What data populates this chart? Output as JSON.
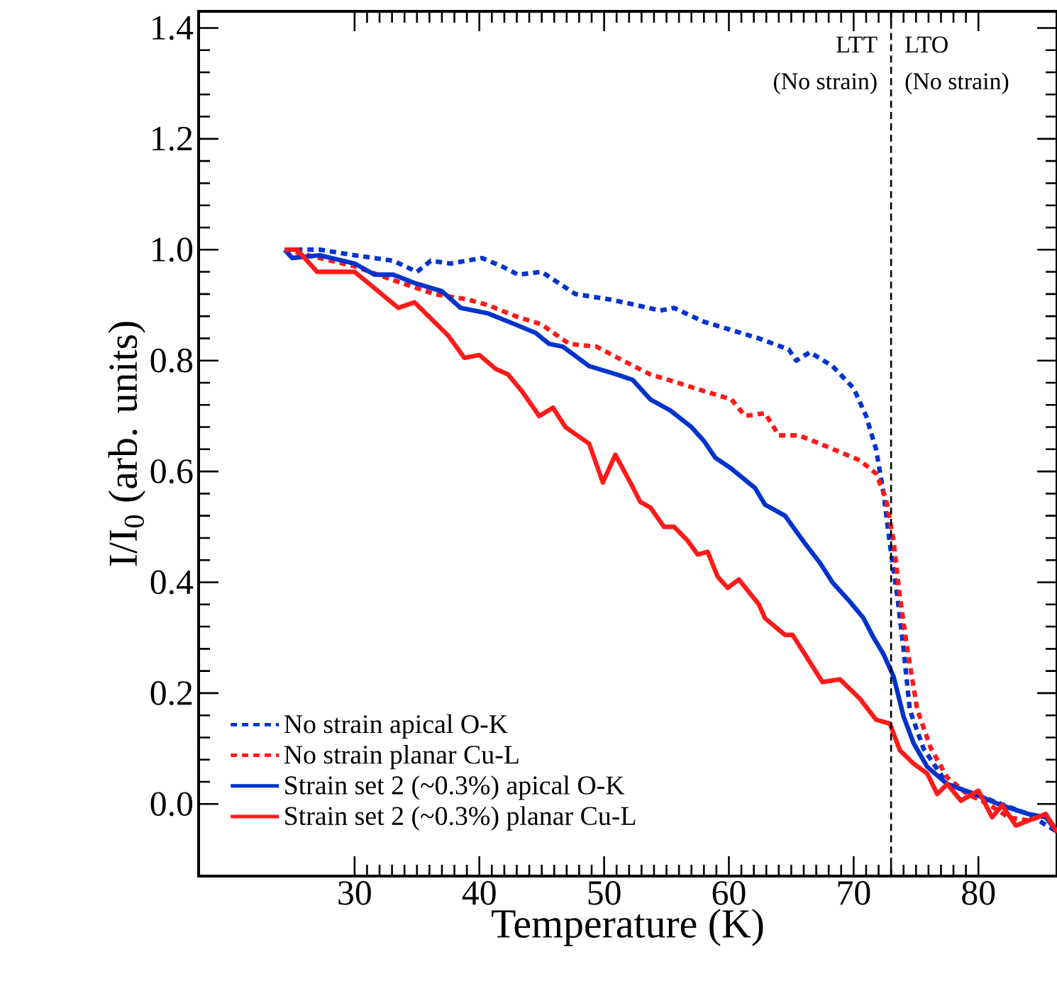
{
  "chart_data": {
    "type": "line",
    "xlabel": "Temperature (K)",
    "ylabel": "I/I$_{0}$   (arb. units)",
    "xlim": [
      17.5,
      86.3
    ],
    "ylim": [
      -0.13,
      1.43
    ],
    "xticks": [
      30,
      40,
      50,
      60,
      70,
      80
    ],
    "yticks": [
      {
        "value": 0,
        "label": "0.0"
      },
      {
        "value": 0.2,
        "label": "0.2"
      },
      {
        "value": 0.4,
        "label": "0.4"
      },
      {
        "value": 0.6,
        "label": "0.6"
      },
      {
        "value": 0.8,
        "label": "0.8"
      },
      {
        "value": 1.0,
        "label": "1.0"
      },
      {
        "value": 1.2,
        "label": "1.2"
      },
      {
        "value": 1.4,
        "label": "1.4"
      }
    ],
    "legend": "bottom left",
    "grid": false,
    "marker": "none",
    "ref_lines": [
      {
        "axis": "x",
        "value": 73,
        "color": "#000000",
        "line_style": "dashed"
      }
    ],
    "annotations": [
      "LTT",
      "(No strain)",
      "LTO",
      "(No strain)"
    ],
    "series": [
      {
        "name": "No strain apical O-K",
        "color": "#0033cc",
        "line_style": "dotted",
        "x": [
          24.4,
          27.2,
          30,
          33.1,
          35,
          36.1,
          37.7,
          40.2,
          41.8,
          43.1,
          45,
          47.7,
          50.5,
          52.6,
          54.5,
          55.6,
          58,
          60.2,
          62.4,
          64.8,
          65.4,
          66.5,
          68.3,
          70,
          71,
          71.8,
          72.4,
          72.9,
          73.5,
          74,
          74.5,
          75.6,
          77.5,
          79.7,
          81.8,
          84,
          86.3
        ],
        "values": [
          1.0,
          1.0,
          0.99,
          0.98,
          0.96,
          0.98,
          0.975,
          0.985,
          0.97,
          0.955,
          0.96,
          0.92,
          0.91,
          0.9,
          0.89,
          0.895,
          0.87,
          0.855,
          0.84,
          0.82,
          0.8,
          0.815,
          0.79,
          0.75,
          0.7,
          0.64,
          0.56,
          0.47,
          0.375,
          0.28,
          0.17,
          0.1,
          0.036,
          0.018,
          0,
          -0.018,
          -0.05
        ]
      },
      {
        "name": "No strain planar Cu-L",
        "color": "#ff1a1a",
        "line_style": "dotted",
        "x": [
          24.4,
          27.2,
          30,
          33.1,
          36.4,
          39.1,
          40.7,
          42.9,
          45,
          47.2,
          49.4,
          51.5,
          53.7,
          55.9,
          58,
          60.2,
          61.3,
          62.9,
          64,
          65.6,
          67.3,
          68.9,
          70.5,
          71.8,
          72.6,
          73.2,
          73.7,
          74.3,
          75.1,
          76.2,
          77.5,
          79.1,
          80.8,
          82.4,
          84.1,
          85.4,
          86.3
        ],
        "values": [
          1.0,
          0.985,
          0.97,
          0.945,
          0.92,
          0.91,
          0.9,
          0.88,
          0.865,
          0.83,
          0.825,
          0.8,
          0.775,
          0.76,
          0.745,
          0.73,
          0.7,
          0.705,
          0.665,
          0.665,
          0.65,
          0.635,
          0.62,
          0.596,
          0.55,
          0.475,
          0.375,
          0.28,
          0.17,
          0.1,
          0.048,
          0.018,
          0,
          -0.024,
          -0.03,
          -0.018,
          -0.05
        ]
      },
      {
        "name": "Strain set 2 (~0.3%) apical O-K",
        "color": "#0033cc",
        "line_style": "solid",
        "x": [
          24.4,
          25,
          27.2,
          30,
          31.6,
          33.1,
          34.8,
          37,
          38.5,
          40.7,
          42.9,
          44.5,
          45.6,
          46.7,
          48.8,
          51,
          52.3,
          53.7,
          55.3,
          57,
          58,
          58.9,
          60.2,
          62.1,
          62.9,
          64.5,
          66.1,
          67.3,
          68.3,
          69.7,
          70.8,
          71.6,
          72.4,
          73.2,
          74,
          74.8,
          75.9,
          77.5,
          79.7,
          81.8,
          84,
          85.4,
          86.3
        ],
        "values": [
          1.0,
          0.985,
          0.99,
          0.975,
          0.955,
          0.955,
          0.94,
          0.925,
          0.895,
          0.885,
          0.865,
          0.85,
          0.83,
          0.825,
          0.79,
          0.775,
          0.765,
          0.73,
          0.71,
          0.68,
          0.655,
          0.625,
          0.605,
          0.57,
          0.54,
          0.52,
          0.47,
          0.435,
          0.4,
          0.365,
          0.335,
          0.3,
          0.27,
          0.23,
          0.158,
          0.11,
          0.067,
          0.036,
          0.018,
          -0.002,
          -0.018,
          -0.024,
          -0.05
        ]
      },
      {
        "name": "Strain set 2 (~0.3%) planar Cu-L",
        "color": "#ff1a1a",
        "line_style": "solid",
        "x": [
          24.4,
          25.4,
          27,
          30,
          31.9,
          33.5,
          34.8,
          37.5,
          38.8,
          40,
          41.3,
          42.3,
          43.4,
          44.8,
          45.9,
          46.9,
          48.8,
          49.9,
          50.9,
          52.1,
          52.9,
          53.7,
          54.8,
          55.6,
          56.7,
          57.5,
          58.3,
          59.1,
          59.9,
          60.8,
          62.4,
          62.9,
          64.5,
          65.1,
          66.1,
          67.5,
          68.9,
          70.5,
          71.8,
          72.9,
          73.7,
          74.8,
          75.9,
          76.7,
          77.5,
          78.6,
          80,
          81.1,
          81.9,
          83,
          84,
          85.4,
          86.3
        ],
        "values": [
          1.0,
          1.0,
          0.96,
          0.96,
          0.925,
          0.895,
          0.905,
          0.845,
          0.805,
          0.81,
          0.785,
          0.775,
          0.745,
          0.7,
          0.715,
          0.68,
          0.65,
          0.58,
          0.63,
          0.58,
          0.545,
          0.535,
          0.5,
          0.5,
          0.475,
          0.45,
          0.455,
          0.41,
          0.39,
          0.405,
          0.36,
          0.335,
          0.305,
          0.305,
          0.27,
          0.22,
          0.225,
          0.19,
          0.152,
          0.145,
          0.097,
          0.073,
          0.055,
          0.018,
          0.036,
          0.006,
          0.024,
          -0.024,
          -0.002,
          -0.039,
          -0.03,
          -0.018,
          -0.051
        ]
      }
    ]
  }
}
